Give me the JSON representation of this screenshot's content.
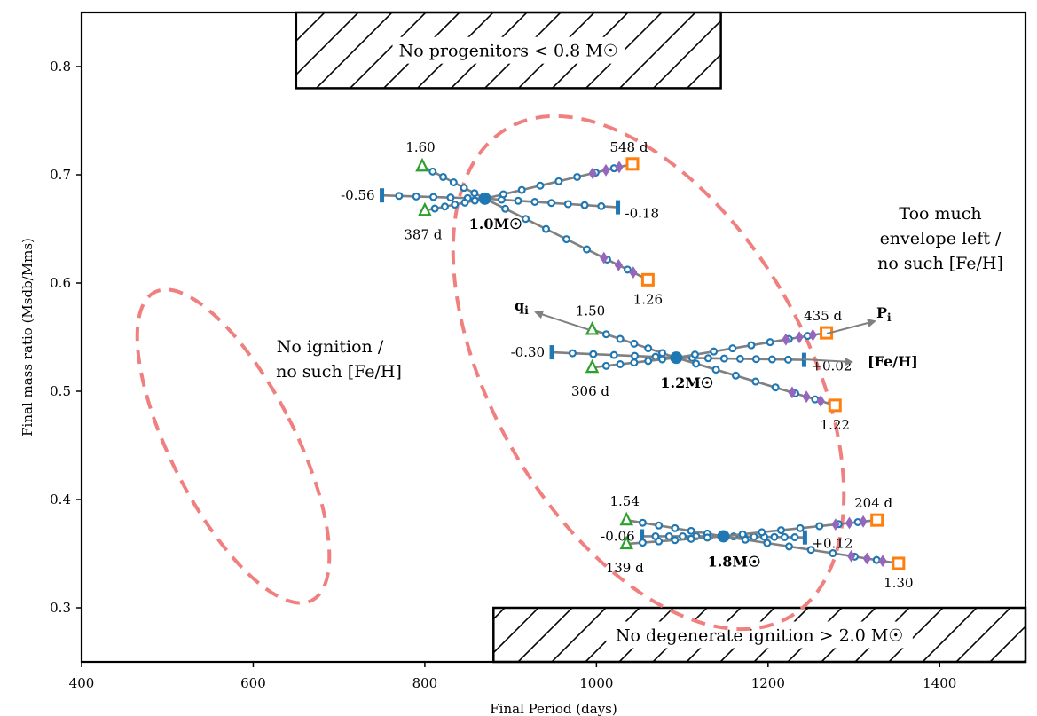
{
  "chart_data": {
    "type": "line",
    "title": "",
    "xlabel": "Final Period (days)",
    "ylabel": "Final mass ratio (Msdb/Mms)",
    "xlim": [
      400,
      1500
    ],
    "ylim": [
      0.25,
      0.85
    ],
    "x_ticks": [
      "400",
      "600",
      "800",
      "1000",
      "1200",
      "1400"
    ],
    "y_ticks": [
      "0.3",
      "0.4",
      "0.5",
      "0.6",
      "0.7",
      "0.8"
    ],
    "grid": false,
    "regions": {
      "top_box": {
        "text": "No progenitors < 0.8 M☉",
        "x": [
          650,
          1145
        ],
        "y": [
          0.78,
          0.85
        ]
      },
      "bottom_box": {
        "text": "No degenerate ignition > 2.0 M☉",
        "x": [
          880,
          1500
        ],
        "y": [
          0.25,
          0.3
        ]
      }
    },
    "annotations": {
      "no_ignition": [
        "No ignition /",
        "no such [Fe/H]"
      ],
      "too_much": [
        "Too much",
        "envelope left /",
        "no such [Fe/H]"
      ]
    },
    "axis_arrows": {
      "q": "q",
      "q_sub": "i",
      "p": "P",
      "p_sub": "i",
      "feh": "[Fe/H]"
    },
    "groups": [
      {
        "mass_label": "1.0M☉",
        "center": [
          870,
          0.678
        ],
        "q_track": {
          "start": [
            797,
            0.708
          ],
          "end": [
            1060,
            0.603
          ],
          "start_label": "1.60",
          "end_label": "1.26"
        },
        "p_track": {
          "start": [
            800,
            0.667
          ],
          "end": [
            1042,
            0.71
          ],
          "start_label": "387 d",
          "end_label": "548 d"
        },
        "feh_track": {
          "start": [
            750,
            0.681
          ],
          "end": [
            1025,
            0.67
          ],
          "start_label": "-0.56",
          "end_label": "-0.18"
        }
      },
      {
        "mass_label": "1.2M☉",
        "center": [
          1093,
          0.531
        ],
        "q_track": {
          "start": [
            995,
            0.557
          ],
          "end": [
            1278,
            0.487
          ],
          "start_label": "1.50",
          "end_label": "1.22"
        },
        "p_track": {
          "start": [
            995,
            0.522
          ],
          "end": [
            1268,
            0.554
          ],
          "start_label": "306 d",
          "end_label": "435 d"
        },
        "feh_track": {
          "start": [
            948,
            0.536
          ],
          "end": [
            1242,
            0.529
          ],
          "start_label": "-0.30",
          "end_label": "+0.02"
        }
      },
      {
        "mass_label": "1.8M☉",
        "center": [
          1148,
          0.366
        ],
        "q_track": {
          "start": [
            1035,
            0.381
          ],
          "end": [
            1352,
            0.341
          ],
          "start_label": "1.54",
          "end_label": "1.30"
        },
        "p_track": {
          "start": [
            1035,
            0.359
          ],
          "end": [
            1327,
            0.381
          ],
          "start_label": "139 d",
          "end_label": "204 d"
        },
        "feh_track": {
          "start": [
            1053,
            0.366
          ],
          "end": [
            1243,
            0.365
          ],
          "start_label": "-0.06",
          "end_label": "+0.12"
        }
      }
    ]
  }
}
